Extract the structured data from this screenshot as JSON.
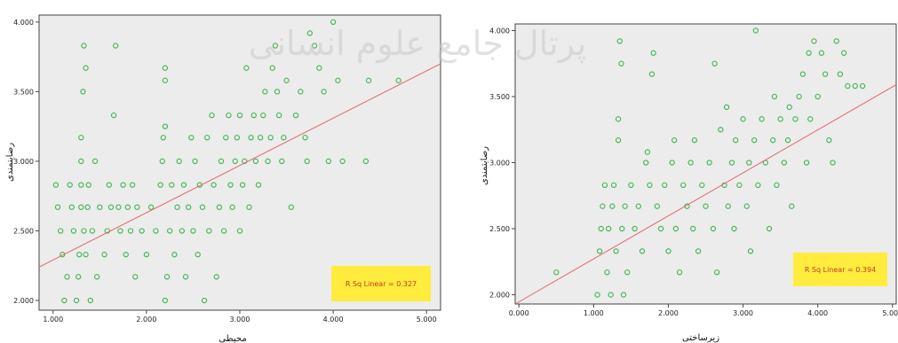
{
  "watermark": "پرتال جامع علوم انسانی",
  "chart_data": [
    {
      "type": "scatter",
      "xlabel": "محیطی",
      "ylabel": "رضایتمندی",
      "xlim": [
        0.85,
        5.15
      ],
      "ylim": [
        1.93,
        4.05
      ],
      "xticks": [
        "1.000",
        "2.000",
        "3.000",
        "4.000",
        "5.000"
      ],
      "xtick_values": [
        1,
        2,
        3,
        4,
        5
      ],
      "yticks": [
        "2.000",
        "2.500",
        "3.000",
        "3.500",
        "4.000"
      ],
      "ytick_values": [
        2,
        2.5,
        3,
        3.5,
        4
      ],
      "fit_line": {
        "x": [
          0.85,
          5.15
        ],
        "y": [
          2.24,
          3.7
        ]
      },
      "annotation": "R Sq Linear = 0.327",
      "grid": false,
      "marker_color": "#3cb34a",
      "line_color": "#e06666",
      "box_color": "#ffec3d",
      "points": [
        [
          1.03,
          2.83
        ],
        [
          1.05,
          2.67
        ],
        [
          1.08,
          2.5
        ],
        [
          1.1,
          2.33
        ],
        [
          1.12,
          2.0
        ],
        [
          1.15,
          2.17
        ],
        [
          1.18,
          2.83
        ],
        [
          1.2,
          2.67
        ],
        [
          1.22,
          2.5
        ],
        [
          1.25,
          2.0
        ],
        [
          1.27,
          2.17
        ],
        [
          1.28,
          2.33
        ],
        [
          1.3,
          2.67
        ],
        [
          1.3,
          2.83
        ],
        [
          1.3,
          3.0
        ],
        [
          1.3,
          3.17
        ],
        [
          1.32,
          3.5
        ],
        [
          1.33,
          3.83
        ],
        [
          1.35,
          3.67
        ],
        [
          1.33,
          2.5
        ],
        [
          1.35,
          2.33
        ],
        [
          1.37,
          2.67
        ],
        [
          1.38,
          2.83
        ],
        [
          1.4,
          2.0
        ],
        [
          1.42,
          2.5
        ],
        [
          1.45,
          3.0
        ],
        [
          1.47,
          2.17
        ],
        [
          1.5,
          2.67
        ],
        [
          1.55,
          2.33
        ],
        [
          1.58,
          2.5
        ],
        [
          1.6,
          2.83
        ],
        [
          1.62,
          2.67
        ],
        [
          1.65,
          3.33
        ],
        [
          1.67,
          3.83
        ],
        [
          1.7,
          2.67
        ],
        [
          1.72,
          2.5
        ],
        [
          1.75,
          2.83
        ],
        [
          1.78,
          2.33
        ],
        [
          1.8,
          2.67
        ],
        [
          1.83,
          2.5
        ],
        [
          1.85,
          2.83
        ],
        [
          1.88,
          2.17
        ],
        [
          1.9,
          2.67
        ],
        [
          1.95,
          2.5
        ],
        [
          2.0,
          2.33
        ],
        [
          2.05,
          2.67
        ],
        [
          2.1,
          2.5
        ],
        [
          2.15,
          2.83
        ],
        [
          2.17,
          3.0
        ],
        [
          2.18,
          3.17
        ],
        [
          2.2,
          3.67
        ],
        [
          2.2,
          3.58
        ],
        [
          2.2,
          3.25
        ],
        [
          2.2,
          2.0
        ],
        [
          2.22,
          2.17
        ],
        [
          2.25,
          2.5
        ],
        [
          2.27,
          2.83
        ],
        [
          2.3,
          2.33
        ],
        [
          2.33,
          2.67
        ],
        [
          2.35,
          3.0
        ],
        [
          2.38,
          2.5
        ],
        [
          2.4,
          2.83
        ],
        [
          2.42,
          2.17
        ],
        [
          2.45,
          2.67
        ],
        [
          2.48,
          3.17
        ],
        [
          2.5,
          2.5
        ],
        [
          2.52,
          3.0
        ],
        [
          2.55,
          2.33
        ],
        [
          2.57,
          2.83
        ],
        [
          2.6,
          2.67
        ],
        [
          2.62,
          2.0
        ],
        [
          2.65,
          3.17
        ],
        [
          2.67,
          2.5
        ],
        [
          2.7,
          3.33
        ],
        [
          2.72,
          2.83
        ],
        [
          2.75,
          2.17
        ],
        [
          2.78,
          2.67
        ],
        [
          2.8,
          3.0
        ],
        [
          2.83,
          2.5
        ],
        [
          2.85,
          3.17
        ],
        [
          2.88,
          3.33
        ],
        [
          2.9,
          2.83
        ],
        [
          2.92,
          2.67
        ],
        [
          2.95,
          3.0
        ],
        [
          2.97,
          3.17
        ],
        [
          3.0,
          3.33
        ],
        [
          3.0,
          2.5
        ],
        [
          3.03,
          2.83
        ],
        [
          3.05,
          3.0
        ],
        [
          3.07,
          3.67
        ],
        [
          3.1,
          2.67
        ],
        [
          3.12,
          3.17
        ],
        [
          3.15,
          3.33
        ],
        [
          3.17,
          3.0
        ],
        [
          3.2,
          2.83
        ],
        [
          3.22,
          3.17
        ],
        [
          3.25,
          3.33
        ],
        [
          3.27,
          3.5
        ],
        [
          3.3,
          3.0
        ],
        [
          3.33,
          3.17
        ],
        [
          3.35,
          3.67
        ],
        [
          3.38,
          3.83
        ],
        [
          3.4,
          3.5
        ],
        [
          3.42,
          3.33
        ],
        [
          3.45,
          3.0
        ],
        [
          3.47,
          3.17
        ],
        [
          3.5,
          3.58
        ],
        [
          3.55,
          2.67
        ],
        [
          3.6,
          3.33
        ],
        [
          3.65,
          3.5
        ],
        [
          3.7,
          3.17
        ],
        [
          3.72,
          3.0
        ],
        [
          3.75,
          3.92
        ],
        [
          3.8,
          3.83
        ],
        [
          3.85,
          3.67
        ],
        [
          3.9,
          3.5
        ],
        [
          3.95,
          3.0
        ],
        [
          4.0,
          4.0
        ],
        [
          4.05,
          3.58
        ],
        [
          4.1,
          3.0
        ],
        [
          4.35,
          3.0
        ],
        [
          4.38,
          3.58
        ],
        [
          4.7,
          3.58
        ]
      ]
    },
    {
      "type": "scatter",
      "xlabel": "زیرساختی",
      "ylabel": "رضایتمندی",
      "xlim": [
        -0.05,
        5.05
      ],
      "ylim": [
        1.93,
        4.05
      ],
      "xticks": [
        "0.000",
        "1.000",
        "2.000",
        "3.000",
        "4.000",
        "5.000"
      ],
      "xtick_values": [
        0,
        1,
        2,
        3,
        4,
        5
      ],
      "yticks": [
        "2.000",
        "2.500",
        "3.000",
        "3.500",
        "4.000"
      ],
      "ytick_values": [
        2,
        2.5,
        3,
        3.5,
        4
      ],
      "fit_line": {
        "x": [
          -0.05,
          5.05
        ],
        "y": [
          1.93,
          3.59
        ]
      },
      "annotation": "R Sq Linear = 0.394",
      "grid": false,
      "marker_color": "#3cb34a",
      "line_color": "#e06666",
      "box_color": "#ffec3d",
      "points": [
        [
          0.5,
          2.17
        ],
        [
          1.05,
          2.0
        ],
        [
          1.08,
          2.33
        ],
        [
          1.1,
          2.5
        ],
        [
          1.12,
          2.67
        ],
        [
          1.15,
          2.83
        ],
        [
          1.18,
          2.17
        ],
        [
          1.2,
          2.5
        ],
        [
          1.23,
          2.0
        ],
        [
          1.25,
          2.67
        ],
        [
          1.27,
          2.83
        ],
        [
          1.3,
          2.33
        ],
        [
          1.33,
          3.17
        ],
        [
          1.33,
          3.33
        ],
        [
          1.35,
          3.92
        ],
        [
          1.37,
          3.75
        ],
        [
          1.38,
          2.5
        ],
        [
          1.4,
          2.0
        ],
        [
          1.42,
          2.67
        ],
        [
          1.45,
          2.17
        ],
        [
          1.5,
          2.83
        ],
        [
          1.55,
          2.5
        ],
        [
          1.6,
          2.67
        ],
        [
          1.65,
          2.33
        ],
        [
          1.7,
          3.0
        ],
        [
          1.72,
          3.08
        ],
        [
          1.75,
          2.83
        ],
        [
          1.78,
          3.67
        ],
        [
          1.8,
          3.83
        ],
        [
          1.85,
          2.67
        ],
        [
          1.9,
          2.5
        ],
        [
          1.95,
          2.83
        ],
        [
          2.0,
          2.33
        ],
        [
          2.05,
          3.0
        ],
        [
          2.08,
          3.17
        ],
        [
          2.1,
          2.5
        ],
        [
          2.15,
          2.17
        ],
        [
          2.2,
          2.83
        ],
        [
          2.25,
          2.67
        ],
        [
          2.3,
          3.0
        ],
        [
          2.33,
          2.5
        ],
        [
          2.35,
          3.17
        ],
        [
          2.4,
          2.33
        ],
        [
          2.45,
          2.83
        ],
        [
          2.5,
          2.67
        ],
        [
          2.55,
          3.0
        ],
        [
          2.6,
          2.5
        ],
        [
          2.62,
          3.75
        ],
        [
          2.65,
          2.17
        ],
        [
          2.7,
          3.25
        ],
        [
          2.75,
          2.83
        ],
        [
          2.78,
          3.42
        ],
        [
          2.8,
          2.67
        ],
        [
          2.85,
          3.0
        ],
        [
          2.88,
          2.5
        ],
        [
          2.9,
          3.17
        ],
        [
          2.95,
          2.83
        ],
        [
          3.0,
          3.33
        ],
        [
          3.05,
          2.67
        ],
        [
          3.08,
          3.0
        ],
        [
          3.1,
          2.33
        ],
        [
          3.15,
          3.17
        ],
        [
          3.17,
          4.0
        ],
        [
          3.2,
          2.83
        ],
        [
          3.25,
          3.33
        ],
        [
          3.3,
          3.0
        ],
        [
          3.35,
          2.5
        ],
        [
          3.4,
          3.17
        ],
        [
          3.42,
          3.5
        ],
        [
          3.45,
          2.83
        ],
        [
          3.5,
          3.33
        ],
        [
          3.55,
          3.0
        ],
        [
          3.6,
          3.17
        ],
        [
          3.62,
          3.42
        ],
        [
          3.65,
          2.67
        ],
        [
          3.7,
          3.33
        ],
        [
          3.75,
          3.5
        ],
        [
          3.8,
          3.67
        ],
        [
          3.85,
          3.0
        ],
        [
          3.88,
          3.83
        ],
        [
          3.9,
          3.33
        ],
        [
          3.95,
          3.92
        ],
        [
          4.0,
          3.5
        ],
        [
          4.05,
          3.83
        ],
        [
          4.1,
          3.67
        ],
        [
          4.15,
          3.17
        ],
        [
          4.2,
          3.0
        ],
        [
          4.25,
          3.92
        ],
        [
          4.3,
          3.67
        ],
        [
          4.35,
          3.83
        ],
        [
          4.4,
          3.58
        ],
        [
          4.5,
          3.58
        ],
        [
          4.6,
          3.58
        ]
      ]
    }
  ]
}
